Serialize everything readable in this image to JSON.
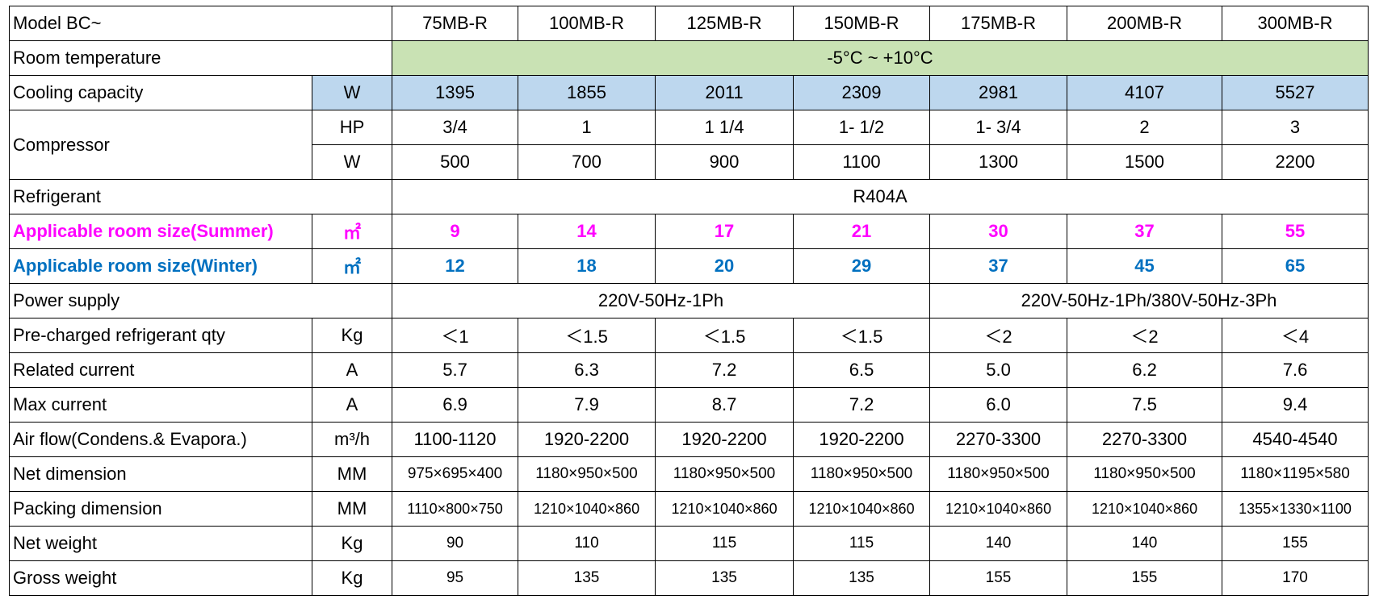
{
  "table": {
    "header": {
      "label": "Model    BC~",
      "models": [
        "75MB-R",
        "100MB-R",
        "125MB-R",
        "150MB-R",
        "175MB-R",
        "200MB-R",
        "300MB-R"
      ]
    },
    "rows": [
      {
        "label": "Room temperature",
        "value": "-5°C ~ +10°C",
        "fill": "#c9e2b4"
      },
      {
        "label": "Cooling capacity",
        "unit": "W",
        "values": [
          1395,
          1855,
          2011,
          2309,
          2981,
          4107,
          5527
        ],
        "fill": "#bdd7ee"
      },
      {
        "label": "Compressor",
        "subrows": [
          {
            "unit": "HP",
            "values": [
              "3/4",
              "1",
              "1 1/4",
              "1- 1/2",
              "1- 3/4",
              "2",
              "3"
            ]
          },
          {
            "unit": "W",
            "values": [
              500,
              700,
              900,
              1100,
              1300,
              1500,
              2200
            ]
          }
        ]
      },
      {
        "label": "Refrigerant",
        "value": "R404A"
      },
      {
        "label": "Applicable room size(Summer)",
        "unit": "㎡",
        "values": [
          9,
          14,
          17,
          21,
          30,
          37,
          55
        ],
        "color": "#ff00ff"
      },
      {
        "label": "Applicable room size(Winter)",
        "unit": "㎡",
        "values": [
          12,
          18,
          20,
          29,
          37,
          45,
          65
        ],
        "color": "#0070c0"
      },
      {
        "label": "Power supply",
        "groups": [
          "220V-50Hz-1Ph",
          "220V-50Hz-1Ph/380V-50Hz-3Ph"
        ]
      },
      {
        "label": "Pre-charged refrigerant qty",
        "unit": "Kg",
        "values": [
          "＜1",
          "＜1.5",
          "＜1.5",
          "＜1.5",
          "＜2",
          "＜2",
          "＜4"
        ]
      },
      {
        "label": "Related current",
        "unit": "A",
        "values": [
          "5.7",
          "6.3",
          "7.2",
          "6.5",
          "5.0",
          "6.2",
          "7.6"
        ]
      },
      {
        "label": "Max current",
        "unit": "A",
        "values": [
          "6.9",
          "7.9",
          "8.7",
          "7.2",
          "6.0",
          "7.5",
          "9.4"
        ]
      },
      {
        "label": "Air flow(Condens.& Evapora.)",
        "unit": "m³/h",
        "values": [
          "1100-1120",
          "1920-2200",
          "1920-2200",
          "1920-2200",
          "2270-3300",
          "2270-3300",
          "4540-4540"
        ]
      },
      {
        "label": "Net dimension",
        "unit": "MM",
        "values": [
          "975×695×400",
          "1180×950×500",
          "1180×950×500",
          "1180×950×500",
          "1180×950×500",
          "1180×950×500",
          "1180×1195×580"
        ]
      },
      {
        "label": "Packing dimension",
        "unit": "MM",
        "values": [
          "1110×800×750",
          "1210×1040×860",
          "1210×1040×860",
          "1210×1040×860",
          "1210×1040×860",
          "1210×1040×860",
          "1355×1330×1100"
        ]
      },
      {
        "label": "Net weight",
        "unit": "Kg",
        "values": [
          90,
          110,
          115,
          115,
          140,
          140,
          155
        ]
      },
      {
        "label": "Gross weight",
        "unit": "Kg",
        "values": [
          95,
          135,
          135,
          135,
          155,
          155,
          170
        ]
      }
    ]
  }
}
